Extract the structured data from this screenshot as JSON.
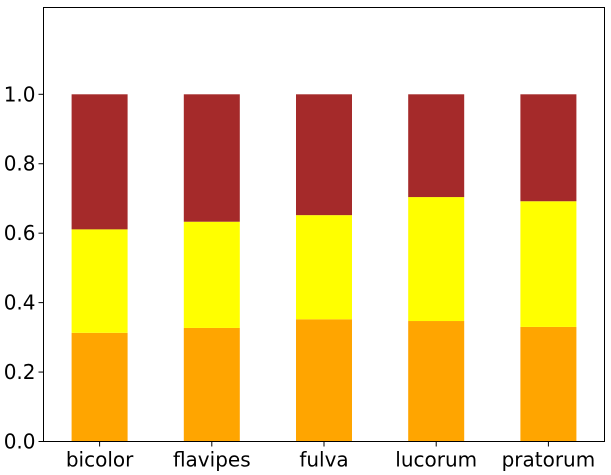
{
  "chart_data": {
    "type": "bar",
    "stacked": true,
    "categories": [
      "bicolor",
      "flavipes",
      "fulva",
      "lucorum",
      "pratorum"
    ],
    "series": [
      {
        "color": "#FFA500",
        "values": [
          0.313,
          0.327,
          0.352,
          0.347,
          0.33
        ]
      },
      {
        "color": "#FFFF00",
        "values": [
          0.298,
          0.306,
          0.3,
          0.357,
          0.362
        ]
      },
      {
        "color": "#A52A2A",
        "values": [
          0.389,
          0.367,
          0.348,
          0.296,
          0.308
        ]
      }
    ],
    "yticks": [
      0.0,
      0.2,
      0.4,
      0.6,
      0.8,
      1.0
    ],
    "ytick_labels": [
      "0.0",
      "0.2",
      "0.4",
      "0.6",
      "0.8",
      "1.0"
    ],
    "ylim": [
      0,
      1.25
    ],
    "title": "",
    "xlabel": "",
    "ylabel": "",
    "grid": false,
    "legend": "none"
  }
}
